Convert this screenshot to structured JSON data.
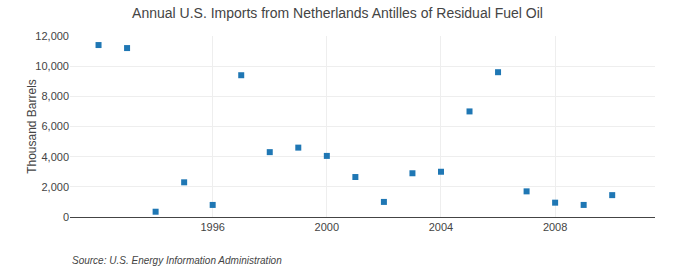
{
  "chart_data": {
    "type": "scatter",
    "title": "Annual U.S. Imports from Netherlands Antilles of Residual Fuel Oil",
    "ylabel": "Thousand Barrels",
    "source": "Source: U.S. Energy Information Administration",
    "x": [
      1992,
      1993,
      1994,
      1995,
      1996,
      1997,
      1998,
      1999,
      2000,
      2001,
      2002,
      2003,
      2004,
      2005,
      2006,
      2007,
      2008,
      2009,
      2010
    ],
    "values": [
      11400,
      11200,
      350,
      2300,
      800,
      9400,
      4300,
      4600,
      4050,
      2650,
      1000,
      2900,
      3000,
      7000,
      9600,
      1700,
      950,
      800,
      1450
    ],
    "marker": "square",
    "xlim": [
      1991.0,
      2011.5
    ],
    "xticks": [
      1996,
      2000,
      2004,
      2008
    ],
    "ylim": [
      0,
      12000
    ],
    "yticks": [
      0,
      {
        "value": 2000,
        "label": "2,000"
      },
      {
        "value": 4000,
        "label": "4,000"
      },
      {
        "value": 6000,
        "label": "6,000"
      },
      {
        "value": 8000,
        "label": "8,000"
      },
      {
        "value": 10000,
        "label": "10,000"
      },
      {
        "value": 12000,
        "label": "12,000"
      }
    ],
    "grid": true
  }
}
